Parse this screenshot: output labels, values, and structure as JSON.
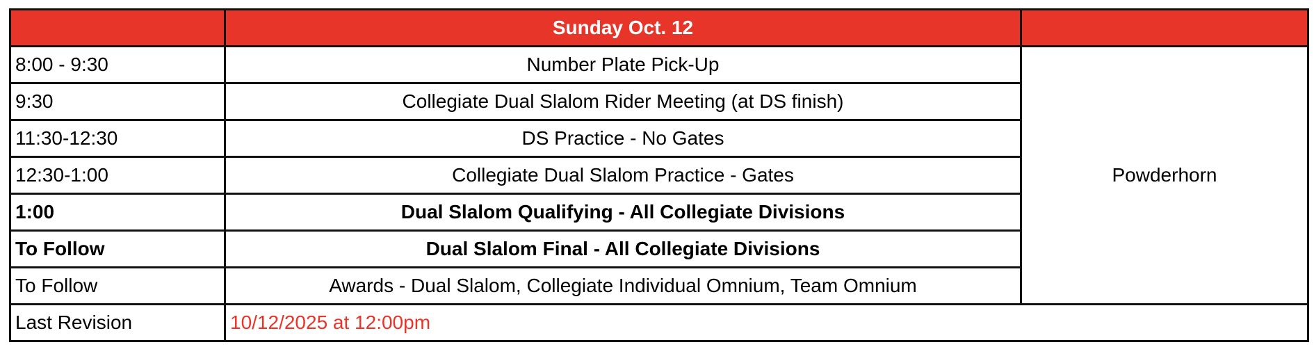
{
  "header": {
    "title": "Sunday Oct. 12"
  },
  "rows": [
    {
      "time": "8:00 - 9:30",
      "event": "Number Plate Pick-Up",
      "bold": false
    },
    {
      "time": "9:30",
      "event": "Collegiate Dual Slalom Rider Meeting (at DS finish)",
      "bold": false
    },
    {
      "time": "11:30-12:30",
      "event": "DS Practice - No Gates",
      "bold": false
    },
    {
      "time": "12:30-1:00",
      "event": "Collegiate Dual Slalom Practice - Gates",
      "bold": false
    },
    {
      "time": "1:00",
      "event": "Dual Slalom Qualifying - All Collegiate Divisions",
      "bold": true
    },
    {
      "time": "To Follow",
      "event": "Dual Slalom Final - All Collegiate Divisions",
      "bold": true
    },
    {
      "time": "To Follow",
      "event": "Awards - Dual Slalom, Collegiate Individual Omnium, Team Omnium",
      "bold": false
    }
  ],
  "location": "Powderhorn",
  "revision": {
    "label": "Last Revision",
    "value": "10/12/2025 at 12:00pm"
  },
  "colors": {
    "header_bg": "#E8352A",
    "revision_text": "#E8352A"
  }
}
